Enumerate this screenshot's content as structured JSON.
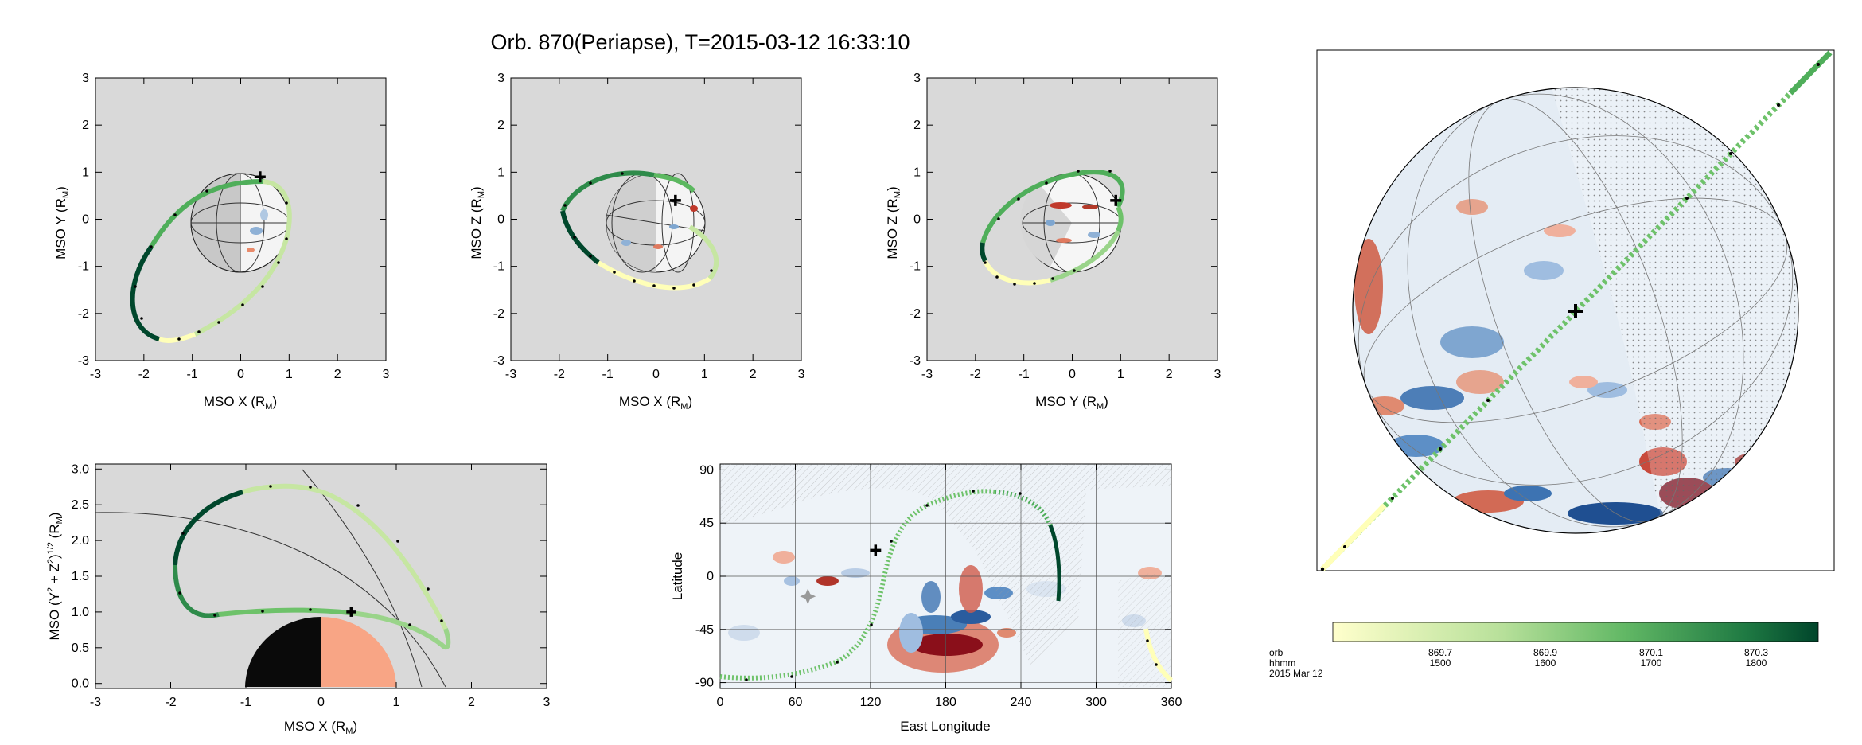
{
  "title": "Orb. 870(Periapse), T=2015-03-12 16:33:10",
  "colors": {
    "plot_bg": "#d9d9d9",
    "track_light": "#ffffb8",
    "track_mid": "#6ec26a",
    "track_dark": "#00472c",
    "mars_day": "#f8a585",
    "mars_night": "#0a0a0a"
  },
  "chart_data": [
    {
      "id": "xy",
      "type": "line",
      "xlabel": "MSO X  (R",
      "xlabel_sub": "M",
      "ylabel": "MSO Y  (R",
      "ylabel_sub": "M",
      "xlim": [
        -3,
        3
      ],
      "ylim": [
        -3,
        3
      ],
      "xticks": [
        "-3",
        "-2",
        "-1",
        "0",
        "1",
        "2",
        "3"
      ],
      "yticks": [
        "-3",
        "-2",
        "-1",
        "0",
        "1",
        "2",
        "3"
      ],
      "spacecraft": [
        0.4,
        0.9
      ]
    },
    {
      "id": "xz",
      "type": "line",
      "xlabel": "MSO X  (R",
      "xlabel_sub": "M",
      "ylabel": "MSO Z  (R",
      "ylabel_sub": "M",
      "xlim": [
        -3,
        3
      ],
      "ylim": [
        -3,
        3
      ],
      "xticks": [
        "-3",
        "-2",
        "-1",
        "0",
        "1",
        "2",
        "3"
      ],
      "yticks": [
        "-3",
        "-2",
        "-1",
        "0",
        "1",
        "2",
        "3"
      ],
      "spacecraft": [
        0.4,
        0.4
      ]
    },
    {
      "id": "yz",
      "type": "line",
      "xlabel": "MSO Y  (R",
      "xlabel_sub": "M",
      "ylabel": "MSO Z  (R",
      "ylabel_sub": "M",
      "xlim": [
        -3,
        3
      ],
      "ylim": [
        -3,
        3
      ],
      "xticks": [
        "-3",
        "-2",
        "-1",
        "0",
        "1",
        "2",
        "3"
      ],
      "yticks": [
        "-3",
        "-2",
        "-1",
        "0",
        "1",
        "2",
        "3"
      ],
      "spacecraft": [
        0.9,
        0.4
      ]
    },
    {
      "id": "cyl",
      "type": "line",
      "xlabel": "MSO X  (R",
      "xlabel_sub": "M",
      "ylabel_parts": [
        "MSO (Y",
        "2",
        " + Z",
        "2",
        ")",
        "1/2",
        "  (R",
        "M",
        ")"
      ],
      "xlim": [
        -3,
        3
      ],
      "ylim": [
        -0.07,
        3.07
      ],
      "xticks": [
        "-3",
        "-2",
        "-1",
        "0",
        "1",
        "2",
        "3"
      ],
      "yticks": [
        "0.0",
        "0.5",
        "1.0",
        "1.5",
        "2.0",
        "2.5",
        "3.0"
      ],
      "spacecraft": [
        0.4,
        1.0
      ]
    },
    {
      "id": "map",
      "type": "line",
      "xlabel": "East Longitude",
      "ylabel": "Latitude",
      "xlim": [
        0,
        360
      ],
      "ylim": [
        -95,
        95
      ],
      "xticks": [
        "0",
        "60",
        "120",
        "180",
        "240",
        "300",
        "360"
      ],
      "yticks": [
        "-90",
        "-45",
        "0",
        "45",
        "90"
      ],
      "spacecraft": [
        124,
        22
      ],
      "subsolar": [
        70,
        -17
      ]
    },
    {
      "id": "colorbar",
      "type": "heatmap",
      "row_labels": [
        "orb",
        "hhmm",
        "2015 Mar 12"
      ],
      "ticks": [
        {
          "orb": "869.7",
          "hhmm": "1500"
        },
        {
          "orb": "869.9",
          "hhmm": "1600"
        },
        {
          "orb": "870.1",
          "hhmm": "1700"
        },
        {
          "orb": "870.3",
          "hhmm": "1800"
        }
      ]
    }
  ]
}
